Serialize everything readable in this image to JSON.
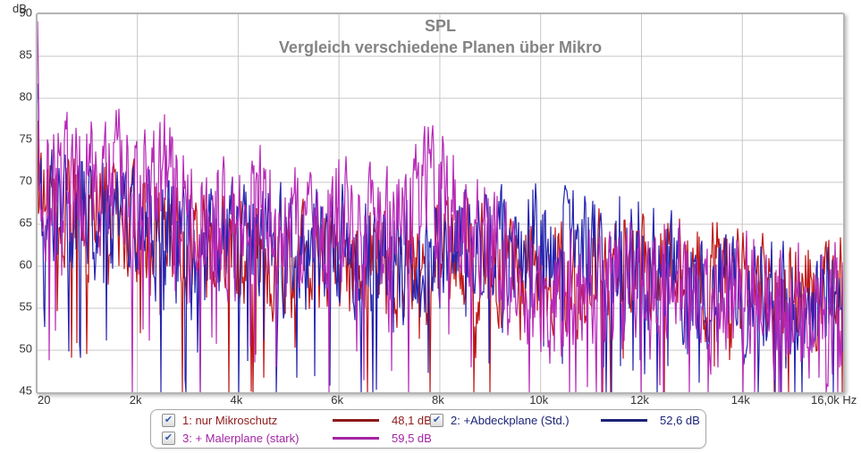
{
  "units": {
    "y": "dB"
  },
  "chart_data": {
    "type": "line",
    "title": "SPL",
    "subtitle": "Vergleich verschiedene Planen über Mikro",
    "grid": true,
    "x_axis": {
      "unit": "Hz",
      "scale": "linear",
      "min": 20,
      "max": 16000,
      "tick_values": [
        20,
        2000,
        4000,
        6000,
        8000,
        10000,
        12000,
        14000,
        16000
      ],
      "tick_labels": [
        "20",
        "2k",
        "4k",
        "6k",
        "8k",
        "10k",
        "12k",
        "14k",
        "16,0k Hz"
      ]
    },
    "y_axis": {
      "unit": "dB",
      "min": 45,
      "max": 90,
      "tick_step": 5,
      "tick_values": [
        90,
        85,
        80,
        75,
        70,
        65,
        60,
        55,
        50,
        45
      ],
      "tick_labels": [
        "90",
        "85",
        "80",
        "75",
        "70",
        "65",
        "60",
        "55",
        "50",
        "45"
      ]
    },
    "series": [
      {
        "name": "1: nur Mikroschutz",
        "average_spl": "48,1 dB",
        "color": "#c01414",
        "legend_color": "#8e1a1a",
        "seed": 11,
        "noise_db": 5.2,
        "dip_chance": 0.05,
        "dip_depth": 12,
        "trend": [
          [
            20,
            80
          ],
          [
            40,
            72
          ],
          [
            100,
            66
          ],
          [
            300,
            66
          ],
          [
            700,
            67
          ],
          [
            1000,
            66
          ],
          [
            1500,
            67
          ],
          [
            2000,
            64
          ],
          [
            2500,
            65
          ],
          [
            3000,
            62
          ],
          [
            4000,
            62
          ],
          [
            5000,
            61
          ],
          [
            6000,
            61
          ],
          [
            7000,
            60
          ],
          [
            8000,
            61
          ],
          [
            9000,
            60
          ],
          [
            10000,
            60
          ],
          [
            11000,
            59
          ],
          [
            12000,
            60
          ],
          [
            13000,
            59
          ],
          [
            14000,
            58
          ],
          [
            15000,
            57
          ],
          [
            16000,
            57
          ]
        ]
      },
      {
        "name": "2: +Abdeckplane (Std.)",
        "average_spl": "52,6 dB",
        "color": "#2525b0",
        "legend_color": "#1c2576",
        "seed": 7,
        "noise_db": 5.6,
        "dip_chance": 0.07,
        "dip_depth": 14,
        "trend": [
          [
            20,
            83
          ],
          [
            40,
            74
          ],
          [
            100,
            67
          ],
          [
            500,
            66
          ],
          [
            1000,
            66
          ],
          [
            2000,
            65
          ],
          [
            3000,
            62
          ],
          [
            4000,
            63
          ],
          [
            5000,
            62
          ],
          [
            6000,
            62
          ],
          [
            7000,
            61
          ],
          [
            8000,
            62
          ],
          [
            9000,
            62
          ],
          [
            9700,
            63
          ],
          [
            10000,
            62
          ],
          [
            11000,
            61
          ],
          [
            12000,
            60
          ],
          [
            13000,
            58
          ],
          [
            14000,
            57
          ],
          [
            15000,
            55
          ],
          [
            16000,
            56
          ]
        ]
      },
      {
        "name": "3: + Malerplane (stark)",
        "average_spl": "59,5 dB",
        "color": "#b829b8",
        "legend_color": "#a324a3",
        "seed": 3,
        "noise_db": 6.2,
        "dip_chance": 0.08,
        "dip_depth": 18,
        "trend": [
          [
            20,
            84
          ],
          [
            30,
            86
          ],
          [
            60,
            73
          ],
          [
            100,
            70
          ],
          [
            300,
            69
          ],
          [
            600,
            70
          ],
          [
            1000,
            70
          ],
          [
            1500,
            71
          ],
          [
            2000,
            68
          ],
          [
            2500,
            70
          ],
          [
            3000,
            66
          ],
          [
            3500,
            64
          ],
          [
            4000,
            66
          ],
          [
            4500,
            67
          ],
          [
            5000,
            64
          ],
          [
            5500,
            63
          ],
          [
            6000,
            65
          ],
          [
            6500,
            64
          ],
          [
            7000,
            63
          ],
          [
            7500,
            66
          ],
          [
            8000,
            69
          ],
          [
            8500,
            65
          ],
          [
            9000,
            61
          ],
          [
            9500,
            59
          ],
          [
            10000,
            58
          ],
          [
            11000,
            57
          ],
          [
            12000,
            57
          ],
          [
            13000,
            57
          ],
          [
            14000,
            57
          ],
          [
            15000,
            55
          ],
          [
            16000,
            55
          ]
        ]
      }
    ]
  },
  "legend": {
    "rows": [
      {
        "label": "1: nur Mikroschutz",
        "value": "48,1 dB",
        "checked": "✔"
      },
      {
        "label": "2: +Abdeckplane (Std.)",
        "value": "52,6 dB",
        "checked": "✔"
      },
      {
        "label": "3: + Malerplane (stark)",
        "value": "59,5 dB",
        "checked": "✔"
      }
    ]
  }
}
